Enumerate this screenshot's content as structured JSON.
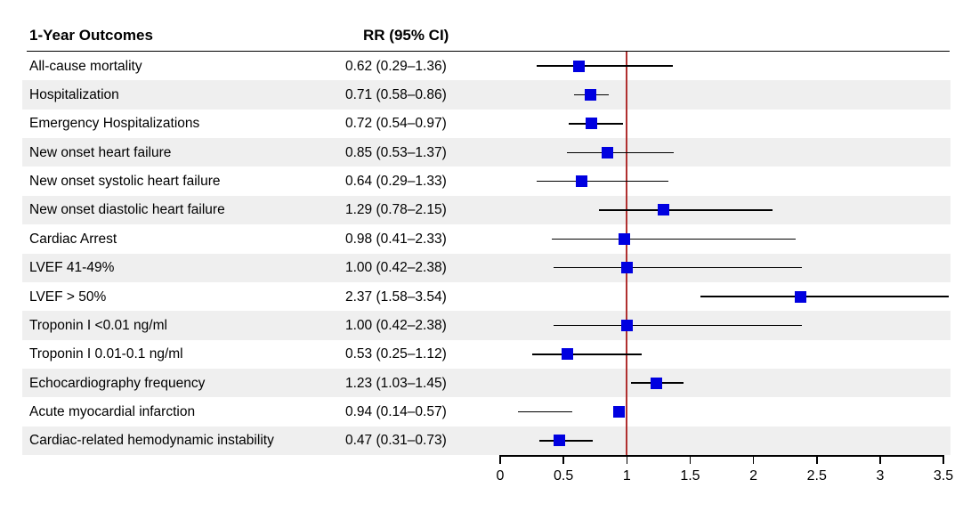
{
  "header": {
    "outcomes_label": "1-Year Outcomes",
    "rr_label": "RR (95% CI)"
  },
  "colors": {
    "marker_blue": "#0000e0",
    "reference_line_red": "#b03030",
    "row_band_gray": "#efefef",
    "line_black": "#000000"
  },
  "chart_data": {
    "type": "scatter",
    "subtype": "forest-plot",
    "title": "1-Year Outcomes",
    "value_column_header": "RR (95% CI)",
    "xlabel": "",
    "xlim": [
      0,
      3.5
    ],
    "x_ticks": [
      0,
      0.5,
      1,
      1.5,
      2,
      2.5,
      3,
      3.5
    ],
    "x_tick_labels": [
      "0",
      "0.5",
      "1",
      "1.5",
      "2",
      "2.5",
      "3",
      "3.5"
    ],
    "reference_line_x": 1,
    "grid": false,
    "rows": [
      {
        "label": "All-cause mortality",
        "rr": 0.62,
        "ci_low": 0.29,
        "ci_high": 1.36,
        "text": "0.62 (0.29–1.36)"
      },
      {
        "label": "Hospitalization",
        "rr": 0.71,
        "ci_low": 0.58,
        "ci_high": 0.86,
        "text": "0.71 (0.58–0.86)"
      },
      {
        "label": "Emergency Hospitalizations",
        "rr": 0.72,
        "ci_low": 0.54,
        "ci_high": 0.97,
        "text": "0.72 (0.54–0.97)"
      },
      {
        "label": "New onset heart failure",
        "rr": 0.85,
        "ci_low": 0.53,
        "ci_high": 1.37,
        "text": "0.85 (0.53–1.37)"
      },
      {
        "label": "New onset systolic heart failure",
        "rr": 0.64,
        "ci_low": 0.29,
        "ci_high": 1.33,
        "text": "0.64 (0.29–1.33)"
      },
      {
        "label": "New onset diastolic heart failure",
        "rr": 1.29,
        "ci_low": 0.78,
        "ci_high": 2.15,
        "text": "1.29 (0.78–2.15)"
      },
      {
        "label": "Cardiac Arrest",
        "rr": 0.98,
        "ci_low": 0.41,
        "ci_high": 2.33,
        "text": "0.98 (0.41–2.33)"
      },
      {
        "label": "LVEF 41-49%",
        "rr": 1.0,
        "ci_low": 0.42,
        "ci_high": 2.38,
        "text": "1.00 (0.42–2.38)"
      },
      {
        "label": "LVEF > 50%",
        "rr": 2.37,
        "ci_low": 1.58,
        "ci_high": 3.54,
        "text": "2.37 (1.58–3.54)"
      },
      {
        "label": "Troponin I <0.01 ng/ml",
        "rr": 1.0,
        "ci_low": 0.42,
        "ci_high": 2.38,
        "text": "1.00 (0.42–2.38)"
      },
      {
        "label": "Troponin I 0.01-0.1 ng/ml",
        "rr": 0.53,
        "ci_low": 0.25,
        "ci_high": 1.12,
        "text": "0.53 (0.25–1.12)"
      },
      {
        "label": "Echocardiography frequency",
        "rr": 1.23,
        "ci_low": 1.03,
        "ci_high": 1.45,
        "text": "1.23 (1.03–1.45)"
      },
      {
        "label": "Acute myocardial infarction",
        "rr": 0.94,
        "ci_low": 0.14,
        "ci_high": 0.57,
        "text": "0.94 (0.14–0.57)"
      },
      {
        "label": "Cardiac-related hemodynamic instability",
        "rr": 0.47,
        "ci_low": 0.31,
        "ci_high": 0.73,
        "text": "0.47 (0.31–0.73)"
      }
    ]
  }
}
